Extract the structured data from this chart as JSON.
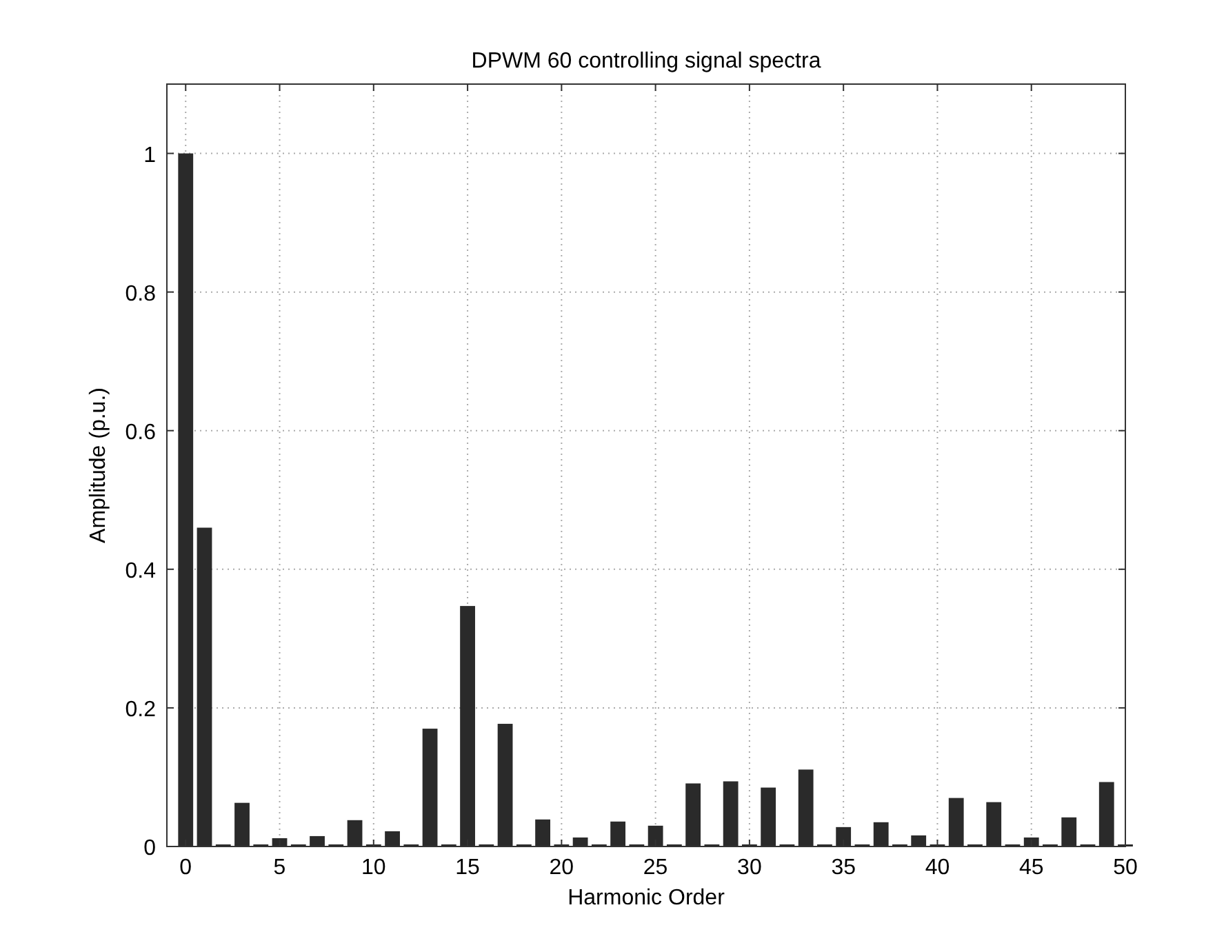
{
  "chart_data": {
    "type": "bar",
    "title": "DPWM 60 controlling signal spectra",
    "xlabel": "Harmonic Order",
    "ylabel": "Amplitude (p.u.)",
    "x": [
      0,
      1,
      2,
      3,
      4,
      5,
      6,
      7,
      8,
      9,
      10,
      11,
      12,
      13,
      14,
      15,
      16,
      17,
      18,
      19,
      20,
      21,
      22,
      23,
      24,
      25,
      26,
      27,
      28,
      29,
      30,
      31,
      32,
      33,
      34,
      35,
      36,
      37,
      38,
      39,
      40,
      41,
      42,
      43,
      44,
      45,
      46,
      47,
      48,
      49,
      50
    ],
    "values": [
      1,
      0.46,
      0.003,
      0.063,
      0.003,
      0.012,
      0.003,
      0.015,
      0.003,
      0.038,
      0.003,
      0.022,
      0.003,
      0.17,
      0.003,
      0.347,
      0.003,
      0.177,
      0.003,
      0.039,
      0.003,
      0.013,
      0.003,
      0.036,
      0.003,
      0.03,
      0.003,
      0.091,
      0.003,
      0.094,
      0.003,
      0.085,
      0.003,
      0.111,
      0.003,
      0.028,
      0.003,
      0.035,
      0.003,
      0.016,
      0.003,
      0.07,
      0.003,
      0.064,
      0.003,
      0.013,
      0.003,
      0.042,
      0.003,
      0.093,
      0.003
    ],
    "color": "#2a2a2a",
    "xlim": [
      -1,
      50
    ],
    "ylim": [
      0,
      1.1
    ],
    "xticks": [
      0,
      5,
      10,
      15,
      20,
      25,
      30,
      35,
      40,
      45,
      50
    ],
    "yticks": [
      0,
      0.2,
      0.4,
      0.6,
      0.8,
      1
    ],
    "grid": true
  }
}
